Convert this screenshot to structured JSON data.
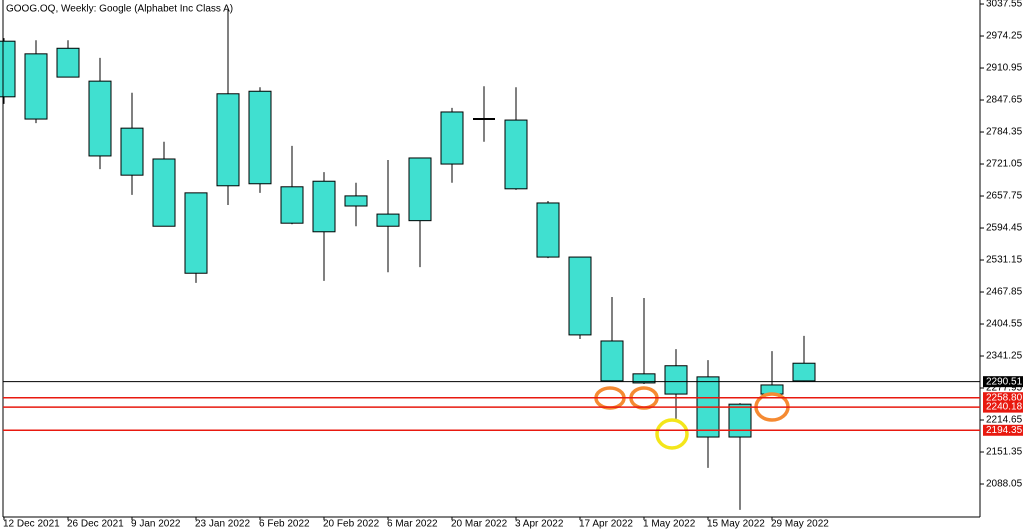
{
  "chart_data": {
    "type": "candlestick",
    "title": "GOOG.OQ, Weekly:  Google (Alphabet Inc Class A)",
    "categories": [
      "12 Dec 2021",
      null,
      "26 Dec 2021",
      null,
      "9 Jan 2022",
      null,
      "23 Jan 2022",
      null,
      "6 Feb 2022",
      null,
      "20 Feb 2022",
      null,
      "6 Mar 2022",
      null,
      "20 Mar 2022",
      null,
      "3 Apr 2022",
      null,
      "17 Apr 2022",
      null,
      "1 May 2022",
      null,
      "15 May 2022",
      null,
      "29 May 2022",
      null
    ],
    "open": [
      2964,
      2810,
      2950,
      2885,
      2792,
      2731,
      2664,
      2678,
      2865,
      2676,
      2687,
      2658,
      2622,
      2609,
      2721,
      2810,
      2808,
      2644,
      2537,
      2371,
      2306,
      2322,
      2300,
      2246,
      2284,
      2292
    ],
    "high": [
      2970,
      2966,
      2966,
      2931,
      2862,
      2765,
      2664,
      3026,
      2873,
      2757,
      2705,
      2684,
      2729,
      2733,
      2832,
      2875,
      2873,
      2648,
      2537,
      2458,
      2456,
      2355,
      2333,
      2248,
      2351,
      2381
    ],
    "low": [
      2840,
      2802,
      2893,
      2711,
      2660,
      2598,
      2486,
      2640,
      2664,
      2602,
      2490,
      2598,
      2507,
      2517,
      2684,
      2765,
      2670,
      2535,
      2375,
      2290,
      2286,
      2217,
      2120,
      2037,
      2264,
      2290
    ],
    "close": [
      2854,
      2939,
      2893,
      2737,
      2699,
      2598,
      2505,
      2860,
      2682,
      2604,
      2587,
      2638,
      2598,
      2733,
      2824,
      2810,
      2672,
      2537,
      2383,
      2292,
      2288,
      2266,
      2181,
      2181,
      2266,
      2327
    ],
    "color": "#40e0d0",
    "ylim": [
      2022.8,
      3045.5
    ],
    "yticks": [
      3037.55,
      2974.25,
      2910.95,
      2847.65,
      2784.35,
      2721.05,
      2657.75,
      2594.45,
      2531.15,
      2467.85,
      2404.55,
      2341.25,
      2277.95,
      2214.65,
      2151.35,
      2088.05
    ],
    "hlines": [
      {
        "value": 2290.51,
        "color": "#000000"
      },
      {
        "value": 2258.8,
        "label": "2258.80",
        "color": "#e8190f"
      },
      {
        "value": 2240.18,
        "color": "#e8190f"
      },
      {
        "value": 2194.35,
        "color": "#e8190f"
      }
    ]
  }
}
